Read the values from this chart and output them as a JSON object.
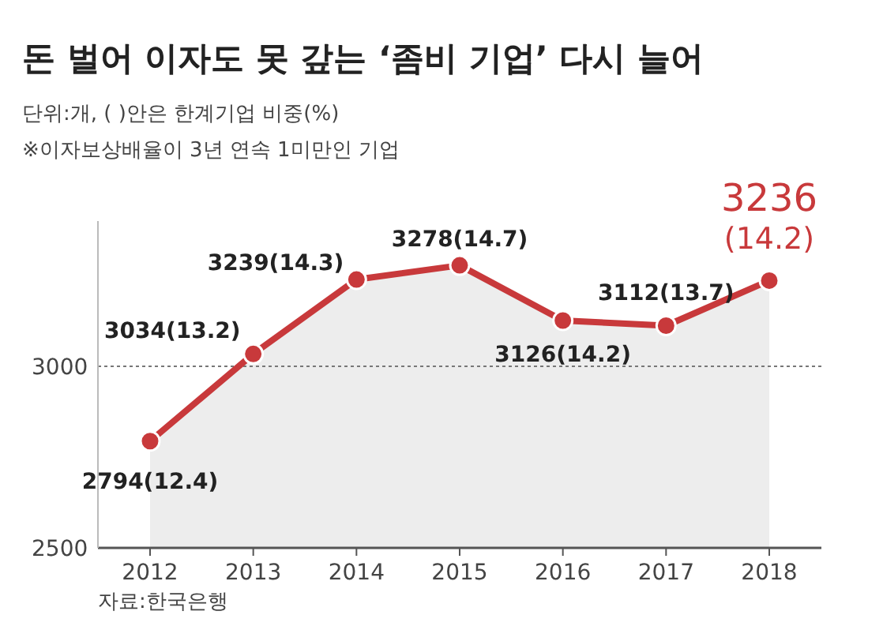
{
  "chart_data": {
    "type": "area",
    "title": "돈 벌어 이자도 못 갚는 ‘좀비 기업’ 다시 늘어",
    "subtitle": "단위:개, ( )안은 한계기업 비중(%)",
    "annotations": [
      "※이자보상배율이 3년 연속 1미만인 기업",
      "자료:한국은행"
    ],
    "categories": [
      "2012",
      "2013",
      "2014",
      "2015",
      "2016",
      "2017",
      "2018"
    ],
    "series": [
      {
        "color": "#c8393b",
        "values": [
          2794,
          3034,
          3239,
          3278,
          3126,
          3112,
          3236
        ]
      }
    ],
    "value_labels": [
      "2794(12.4)",
      "3034(13.2)",
      "3239(14.3)",
      "3278(14.7)",
      "3126(14.2)",
      "3112(13.7)",
      "3236(14.2)"
    ],
    "ylim": [
      2500,
      3400
    ],
    "yticks": [
      2500,
      3000
    ],
    "grid": "y",
    "marker": "circle",
    "line_style": "solid"
  }
}
